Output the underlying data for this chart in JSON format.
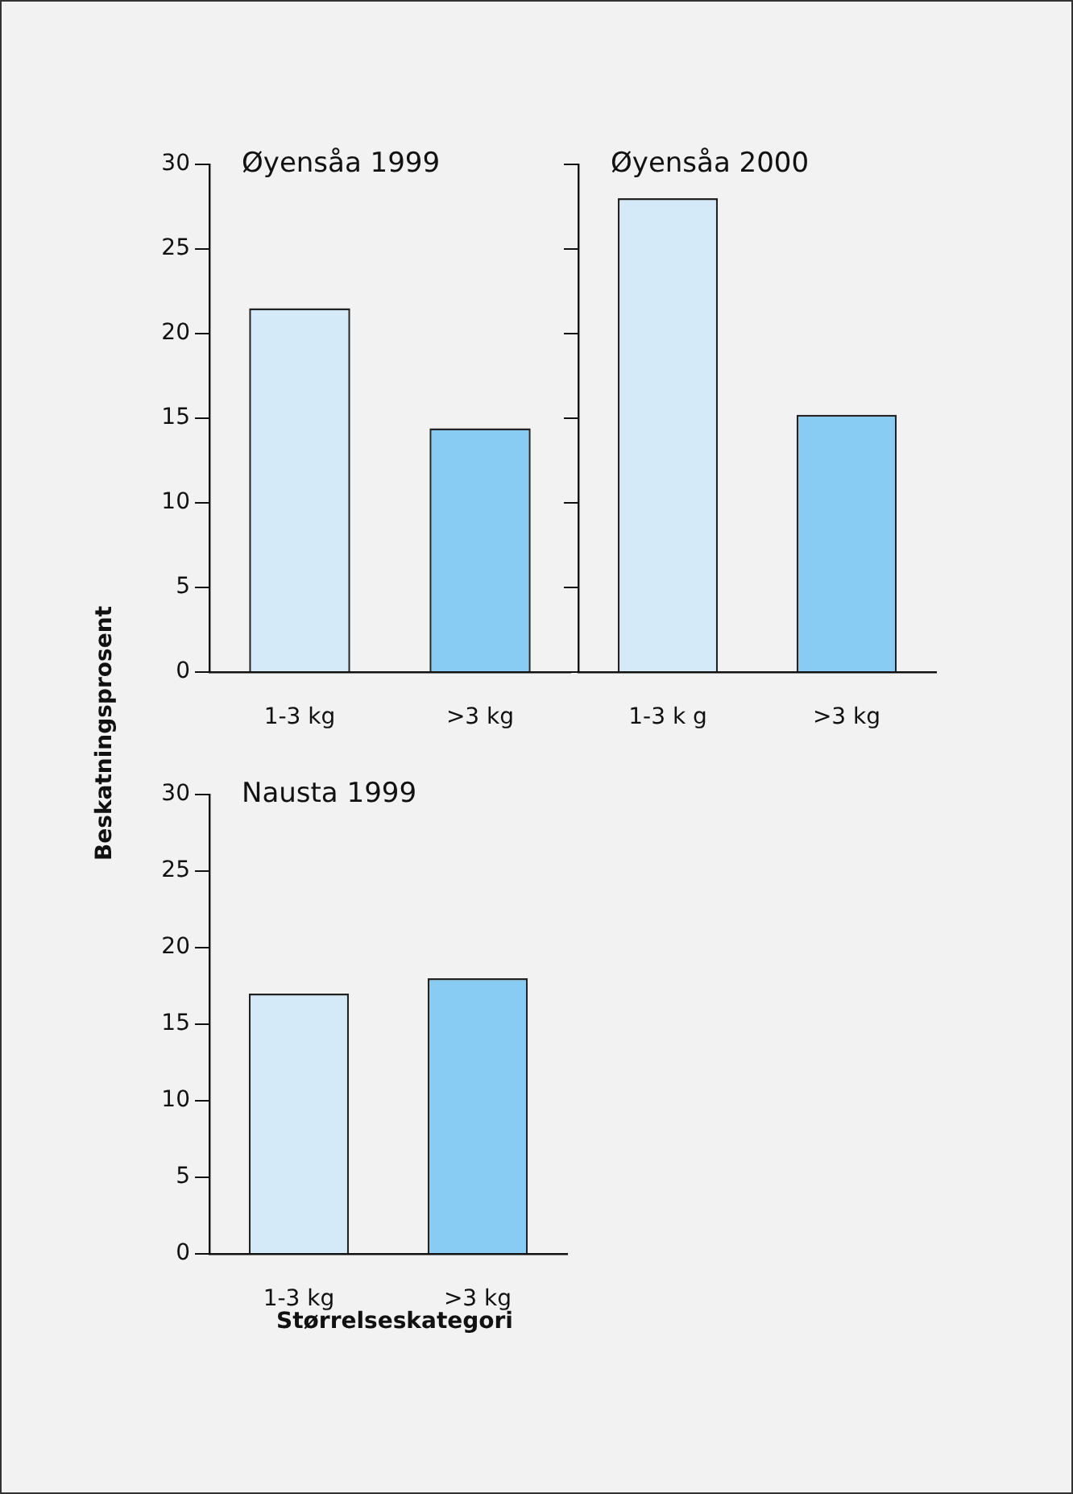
{
  "chart_data": [
    {
      "type": "bar",
      "title": "Øyensåa 1999",
      "categories": [
        "1-3 kg",
        ">3 kg"
      ],
      "values": [
        21.5,
        14.4
      ],
      "colors": [
        "#d4eaf9",
        "#88cbf3"
      ],
      "ylim": [
        0,
        30
      ],
      "yticks": [
        0,
        5,
        10,
        15,
        20,
        25,
        30
      ]
    },
    {
      "type": "bar",
      "title": "Øyensåa 2000",
      "categories": [
        "1-3 k g",
        ">3 kg"
      ],
      "values": [
        28,
        15.2
      ],
      "colors": [
        "#d4eaf9",
        "#88cbf3"
      ],
      "ylim": [
        0,
        30
      ],
      "yticks": [
        0,
        5,
        10,
        15,
        20,
        25,
        30
      ],
      "tick_labels": "x"
    },
    {
      "type": "bar",
      "title": "Nausta 1999",
      "xlabel": "Størrelseskategori",
      "ylabel": "Beskatningsprosent",
      "categories": [
        "1-3 kg",
        ">3 kg"
      ],
      "values": [
        17,
        18
      ],
      "colors": [
        "#d4eaf9",
        "#88cbf3"
      ],
      "ylim": [
        0,
        30
      ],
      "yticks": [
        0,
        5,
        10,
        15,
        20,
        25,
        30
      ]
    }
  ]
}
